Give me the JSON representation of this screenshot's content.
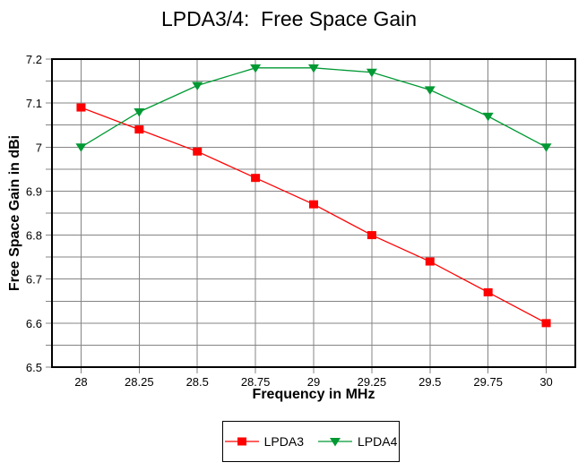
{
  "chart_data": {
    "type": "line",
    "title": "LPDA3/4:  Free Space Gain",
    "xlabel": "Frequency in MHz",
    "ylabel": "Free Space Gain in dBi",
    "x": [
      28,
      28.25,
      28.5,
      28.75,
      29,
      29.25,
      29.5,
      29.75,
      30
    ],
    "series": [
      {
        "name": "LPDA3",
        "color": "#ff0000",
        "marker": "square",
        "values": [
          7.09,
          7.04,
          6.99,
          6.93,
          6.87,
          6.8,
          6.74,
          6.67,
          6.6
        ]
      },
      {
        "name": "LPDA4",
        "color": "#009933",
        "marker": "triangle-down",
        "values": [
          7.0,
          7.08,
          7.14,
          7.18,
          7.18,
          7.17,
          7.13,
          7.07,
          7.0
        ]
      }
    ],
    "xlim": [
      27.875,
      30.125
    ],
    "ylim": [
      6.5,
      7.2
    ],
    "x_tick_values": [
      28,
      28.25,
      28.5,
      28.75,
      29,
      29.25,
      29.5,
      29.75,
      30
    ],
    "x_tick_labels": [
      "28",
      "28.25",
      "28.5",
      "28.75",
      "29",
      "29.25",
      "29.5",
      "29.75",
      "30"
    ],
    "y_tick_values": [
      7.2,
      7.1,
      7,
      6.9,
      6.8,
      6.7,
      6.6,
      6.5
    ],
    "y_tick_labels": [
      "7.2",
      "7.1",
      "7",
      "6.9",
      "6.8",
      "6.7",
      "6.6",
      "6.5"
    ],
    "y_minor_step": 0.05,
    "grid": true,
    "grid_color": "#848484",
    "axis_color": "#000000",
    "background": "#ffffff",
    "legend_position": "bottom-center"
  }
}
